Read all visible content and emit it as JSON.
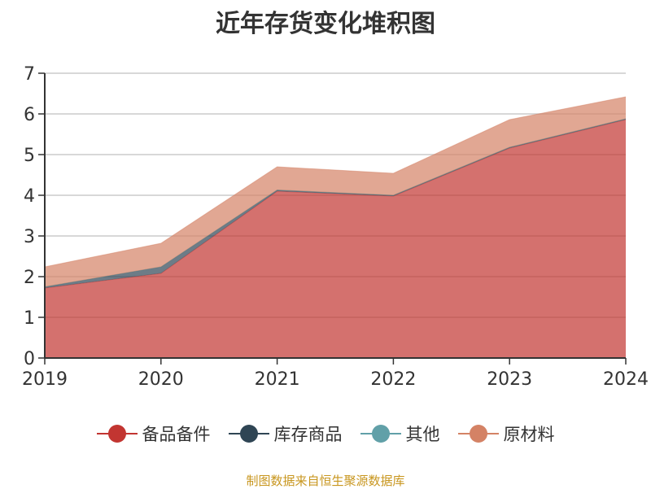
{
  "title": "近年存货变化堆积图",
  "source": "制图数据来自恒生聚源数据库",
  "chart_data": {
    "type": "area",
    "stacked": true,
    "categories": [
      "2019",
      "2020",
      "2021",
      "2022",
      "2023",
      "2024"
    ],
    "ylim": [
      0,
      7
    ],
    "yticks": [
      0,
      1,
      2,
      3,
      4,
      5,
      6,
      7
    ],
    "grid": true,
    "legend": "bottom",
    "series": [
      {
        "name": "备品备件",
        "color": "#c23531",
        "values": [
          1.72,
          2.08,
          4.1,
          3.98,
          5.16,
          5.86
        ]
      },
      {
        "name": "库存商品",
        "color": "#2f4554",
        "values": [
          0.03,
          0.16,
          0.03,
          0.02,
          0.02,
          0.02
        ]
      },
      {
        "name": "其他",
        "color": "#61a0a8",
        "values": [
          0,
          0,
          0,
          0,
          0,
          0
        ]
      },
      {
        "name": "原材料",
        "color": "#d48265",
        "values": [
          0.49,
          0.58,
          0.57,
          0.54,
          0.68,
          0.54
        ]
      }
    ]
  }
}
